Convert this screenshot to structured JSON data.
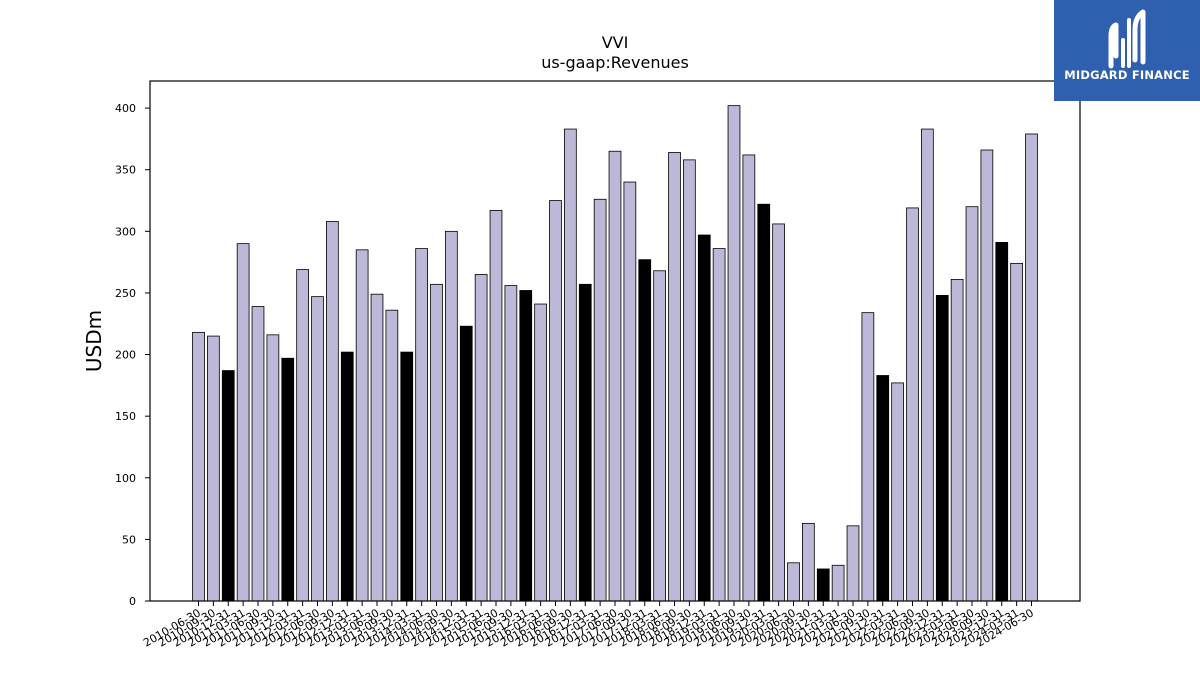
{
  "brand": {
    "name": "MIDGARD FINANCE",
    "background_color": "#2f5faf",
    "icon": "midgard-logo-icon"
  },
  "chart_data": {
    "type": "bar",
    "title": "VVI",
    "subtitle": "us-gaap:Revenues",
    "xlabel": "",
    "ylabel": "USDm",
    "ylim": [
      0,
      422
    ],
    "yticks": [
      0,
      50,
      100,
      150,
      200,
      250,
      300,
      350,
      400
    ],
    "grid": false,
    "legend": "none",
    "colors": {
      "quarter_bar": "#bcb8d8",
      "highlight_bar": "#000000",
      "bar_edge": "#000000"
    },
    "categories": [
      "2010-06-30",
      "2010-09-30",
      "2010-12-31",
      "2011-03-31",
      "2011-06-30",
      "2011-09-30",
      "2011-12-31",
      "2012-03-31",
      "2012-06-30",
      "2012-09-30",
      "2012-12-31",
      "2013-03-31",
      "2013-06-30",
      "2013-09-30",
      "2013-12-31",
      "2014-03-31",
      "2014-06-30",
      "2014-09-30",
      "2014-12-31",
      "2015-03-31",
      "2015-06-30",
      "2015-09-30",
      "2015-12-31",
      "2016-03-31",
      "2016-06-30",
      "2016-09-30",
      "2016-12-31",
      "2017-03-31",
      "2017-06-30",
      "2017-09-30",
      "2017-12-31",
      "2018-03-31",
      "2018-06-30",
      "2018-09-30",
      "2018-12-31",
      "2019-03-31",
      "2019-06-30",
      "2019-09-30",
      "2019-12-31",
      "2020-03-31",
      "2020-06-30",
      "2020-09-30",
      "2020-12-31",
      "2021-03-31",
      "2021-06-30",
      "2021-09-30",
      "2021-12-31",
      "2022-03-31",
      "2022-06-30",
      "2022-09-30",
      "2022-12-31",
      "2023-03-31",
      "2023-06-30",
      "2023-09-30",
      "2023-12-31",
      "2024-03-31",
      "2024-06-30"
    ],
    "values": [
      218,
      215,
      187,
      290,
      239,
      216,
      197,
      269,
      247,
      308,
      202,
      285,
      249,
      236,
      202,
      286,
      257,
      300,
      223,
      265,
      317,
      256,
      252,
      241,
      325,
      383,
      257,
      326,
      365,
      340,
      277,
      268,
      364,
      358,
      297,
      286,
      402,
      362,
      322,
      306,
      31,
      63,
      26,
      29,
      61,
      234,
      183,
      177,
      319,
      383,
      248,
      261,
      320,
      366,
      291,
      274,
      379
    ],
    "highlight": [
      false,
      false,
      true,
      false,
      false,
      false,
      true,
      false,
      false,
      false,
      true,
      false,
      false,
      false,
      true,
      false,
      false,
      false,
      true,
      false,
      false,
      false,
      true,
      false,
      false,
      false,
      true,
      false,
      false,
      false,
      true,
      false,
      false,
      false,
      true,
      false,
      false,
      false,
      true,
      false,
      false,
      false,
      true,
      false,
      false,
      false,
      true,
      false,
      false,
      false,
      true,
      false,
      false,
      false,
      true,
      false,
      false
    ]
  }
}
